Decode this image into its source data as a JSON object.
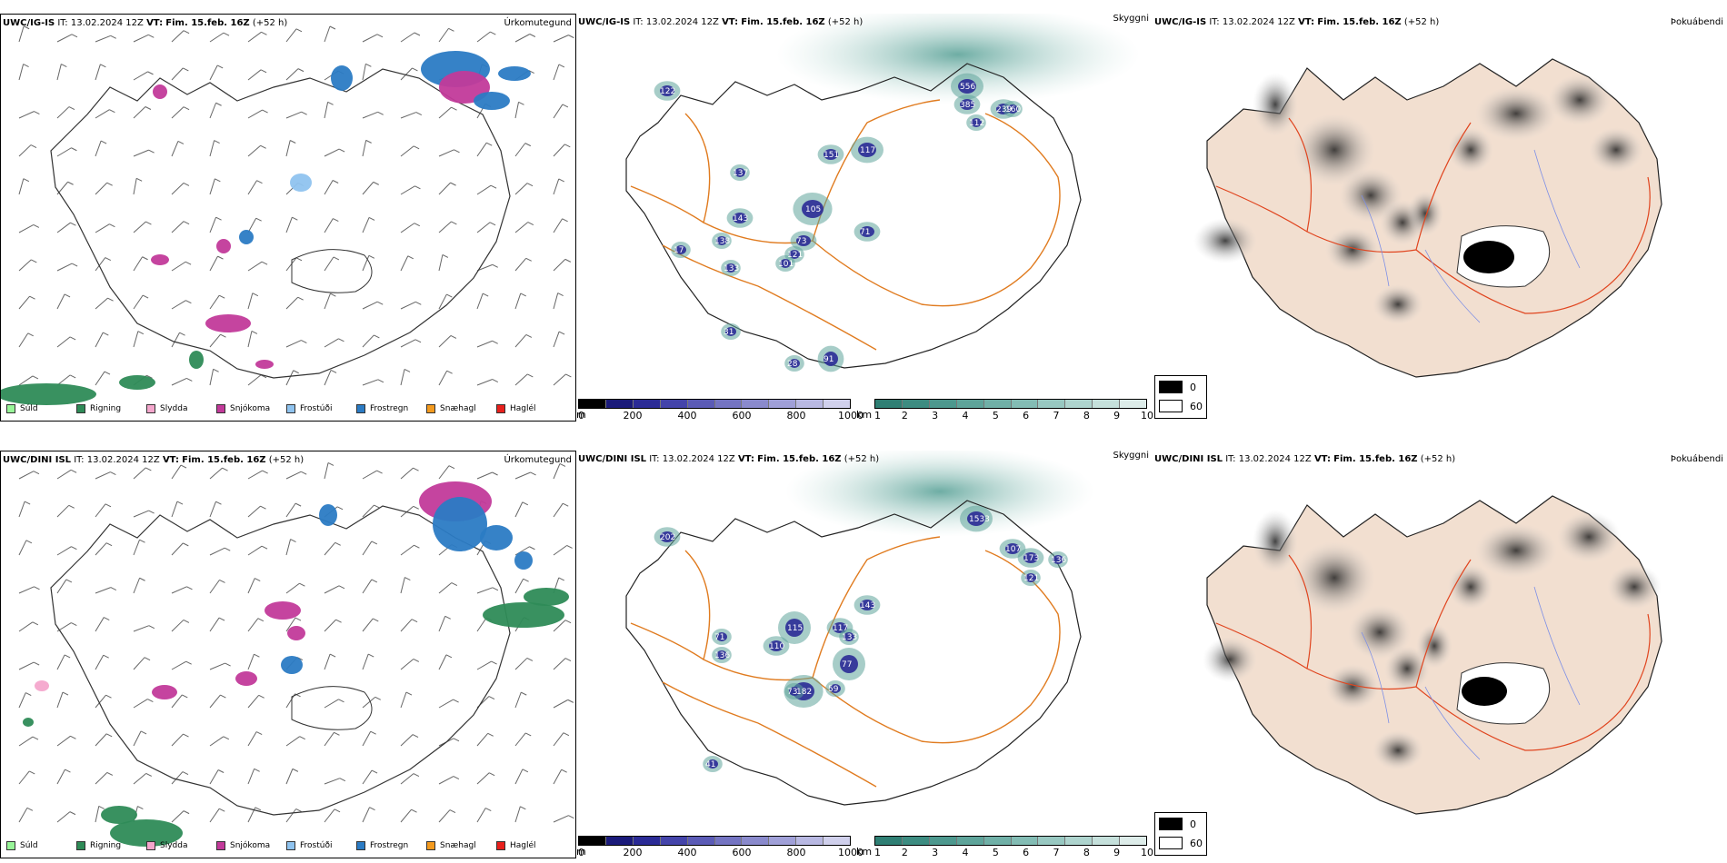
{
  "legend": [
    {
      "label": "Súld",
      "color": "#98f598"
    },
    {
      "label": "Rigning",
      "color": "#2e8b57"
    },
    {
      "label": "Slydda",
      "color": "#f4a6cc"
    },
    {
      "label": "Snjókoma",
      "color": "#c23a9a"
    },
    {
      "label": "Frostúði",
      "color": "#8fc3ef"
    },
    {
      "label": "Frostregn",
      "color": "#2b7bc4"
    },
    {
      "label": "Snæhagl",
      "color": "#f39a1e"
    },
    {
      "label": "Haglél",
      "color": "#e8201c"
    }
  ],
  "rows": [
    {
      "model": "UWC/IG-IS",
      "it_label": "IT:",
      "it_value": "13.02.2024 12Z",
      "vt_label": "VT:",
      "vt_value": "Fim. 15.feb. 16Z",
      "lead": "(+52 h)",
      "precip_title": "Úrkomutegund",
      "cloud_title": "Skyggni",
      "fog_title": "Þokuábendi",
      "cloud_labels": [
        "556",
        "385",
        "239",
        "112",
        "160",
        "122",
        "117",
        "151",
        "137",
        "105",
        "143",
        "73",
        "71",
        "138",
        "133",
        "121",
        "101",
        "31",
        "17",
        "28",
        "91"
      ]
    },
    {
      "model": "UWC/DINI ISL",
      "it_label": "IT:",
      "it_value": "13.02.2024 12Z",
      "vt_label": "VT:",
      "vt_value": "Fim. 15.feb. 16Z",
      "lead": "(+52 h)",
      "precip_title": "Úrkomutegund",
      "cloud_title": "Skyggni",
      "fog_title": "Þokuábendi",
      "cloud_labels": [
        "1533",
        "107",
        "173",
        "121",
        "136",
        "143",
        "115",
        "110",
        "117",
        "133",
        "77",
        "182",
        "73",
        "59",
        "202",
        "136",
        "71",
        "41"
      ]
    }
  ],
  "base_scale": {
    "unit": "m",
    "ticks": [
      "0",
      "200",
      "400",
      "600",
      "800",
      "1000"
    ],
    "colors": [
      "#000000",
      "#1a1a7a",
      "#2b2b96",
      "#4444aa",
      "#5b5bb6",
      "#7474c2",
      "#8a8acc",
      "#a0a0d8",
      "#b8b8e2",
      "#d0d0ec"
    ]
  },
  "vis_scale": {
    "unit": "km",
    "ticks": [
      "1",
      "2",
      "3",
      "4",
      "5",
      "6",
      "7",
      "8",
      "9",
      "10"
    ],
    "colors": [
      "#2f7f74",
      "#3d8c81",
      "#4d988e",
      "#5ea49a",
      "#70b0a7",
      "#83bcb4",
      "#98c8c1",
      "#aed4ce",
      "#c5e0db",
      "#ddece9"
    ]
  },
  "fog_scale": {
    "values": [
      "0",
      "60"
    ],
    "colors": [
      "#000000",
      "#ffffff"
    ]
  }
}
